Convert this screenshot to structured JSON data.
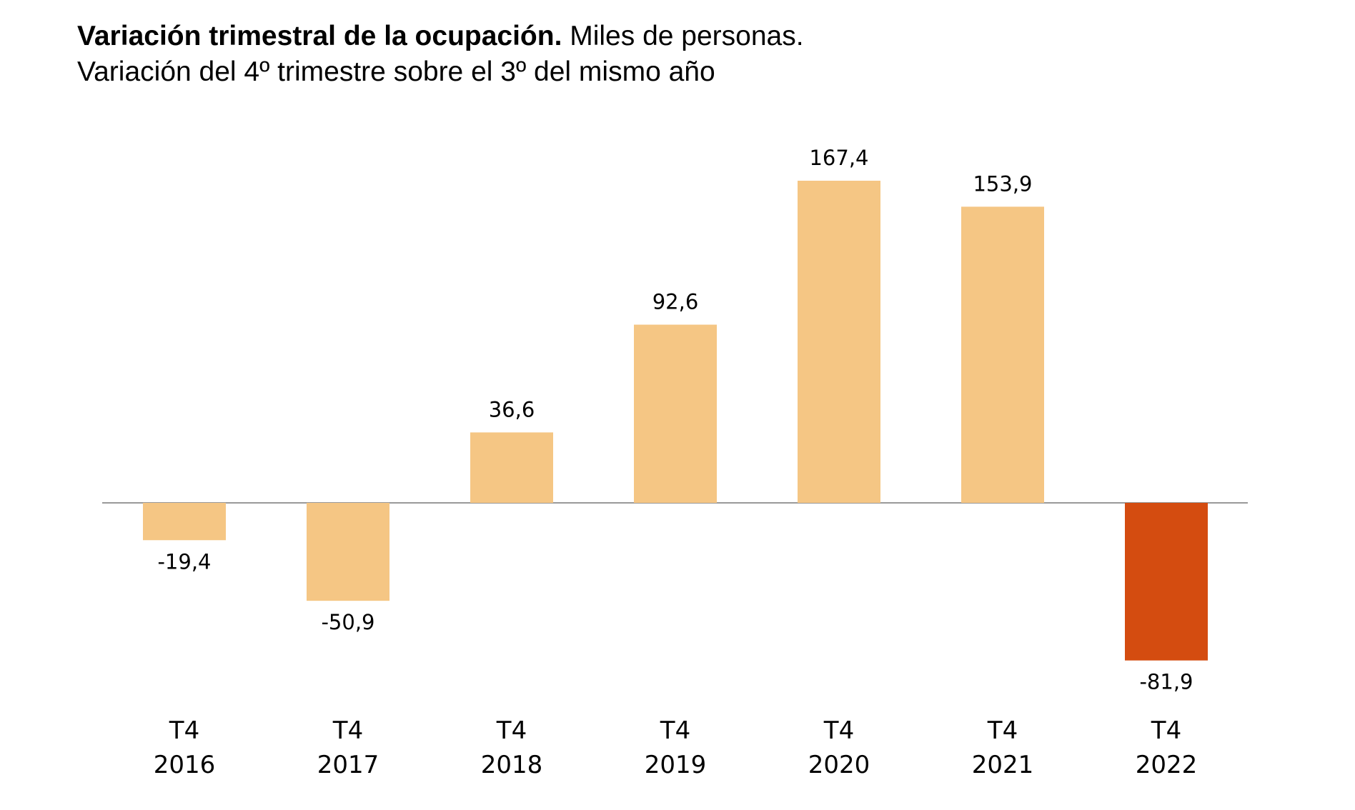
{
  "header": {
    "title_bold": "Variación trimestral de la ocupación.",
    "title_rest": " Miles de personas.",
    "subtitle": "Variación del 4º trimestre sobre el 3º del mismo año"
  },
  "colors": {
    "bar_default": "#F5C684",
    "bar_highlight": "#D44C10",
    "axis_line": "#999999"
  },
  "chart_data": {
    "type": "bar",
    "title": "Variación trimestral de la ocupación. Miles de personas.",
    "subtitle": "Variación del 4º trimestre sobre el 3º del mismo año",
    "categories": [
      [
        "T4",
        "2016"
      ],
      [
        "T4",
        "2017"
      ],
      [
        "T4",
        "2018"
      ],
      [
        "T4",
        "2019"
      ],
      [
        "T4",
        "2020"
      ],
      [
        "T4",
        "2021"
      ],
      [
        "T4",
        "2022"
      ]
    ],
    "values": [
      -19.4,
      -50.9,
      36.6,
      92.6,
      167.4,
      153.9,
      -81.9
    ],
    "value_labels": [
      "-19,4",
      "-50,9",
      "36,6",
      "92,6",
      "167,4",
      "153,9",
      "-81,9"
    ],
    "highlight_index": 6,
    "xlabel": "",
    "ylabel": "",
    "ylim": [
      -81.9,
      167.4
    ],
    "grid": false,
    "legend": "none"
  }
}
